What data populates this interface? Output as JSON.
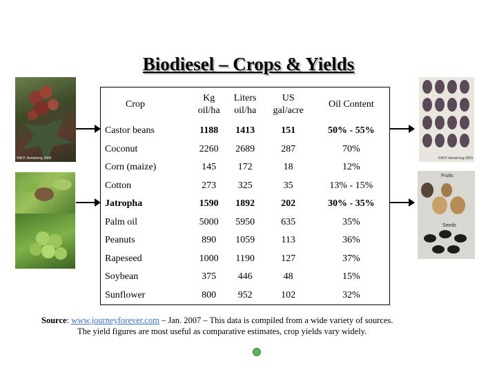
{
  "title": "Biodiesel – Crops & Yields",
  "table": {
    "headers": [
      "Crop",
      "Kg oil/ha",
      "Liters oil/ha",
      "US gal/acre",
      "Oil Content"
    ],
    "header_lines": [
      [
        "Crop"
      ],
      [
        "Kg",
        "oil/ha"
      ],
      [
        "Liters",
        "oil/ha"
      ],
      [
        "US",
        "gal/acre"
      ],
      [
        "Oil Content"
      ]
    ],
    "rows": [
      {
        "crop": "Castor beans",
        "kg": "1188",
        "liters": "1413",
        "gal": "151",
        "oil": "50% - 55%",
        "bold_values": true
      },
      {
        "crop": "Coconut",
        "kg": "2260",
        "liters": "2689",
        "gal": "287",
        "oil": "70%",
        "bold_values": false
      },
      {
        "crop": "Corn (maize)",
        "kg": "145",
        "liters": "172",
        "gal": "18",
        "oil": "12%",
        "bold_values": false
      },
      {
        "crop": "Cotton",
        "kg": "273",
        "liters": "325",
        "gal": "35",
        "oil": "13% - 15%",
        "bold_values": false
      },
      {
        "crop": "Jatropha",
        "kg": "1590",
        "liters": "1892",
        "gal": "202",
        "oil": "30% - 35%",
        "bold_values": true
      },
      {
        "crop": "Palm oil",
        "kg": "5000",
        "liters": "5950",
        "gal": "635",
        "oil": "35%",
        "bold_values": false
      },
      {
        "crop": "Peanuts",
        "kg": "890",
        "liters": "1059",
        "gal": "113",
        "oil": "36%",
        "bold_values": false
      },
      {
        "crop": "Rapeseed",
        "kg": "1000",
        "liters": "1190",
        "gal": "127",
        "oil": "37%",
        "bold_values": false
      },
      {
        "crop": "Soybean",
        "kg": "375",
        "liters": "446",
        "gal": "48",
        "oil": "15%",
        "bold_values": false
      },
      {
        "crop": "Sunflower",
        "kg": "800",
        "liters": "952",
        "gal": "102",
        "oil": "32%",
        "bold_values": false
      }
    ]
  },
  "images": {
    "castor_plant_credit": "©W.P. Armstrong 2009",
    "castor_seeds_credit": "©W.P. Armstrong 2009",
    "jatropha_fruits_label": "Fruits",
    "jatropha_seeds_label": "Seeds"
  },
  "source": {
    "label": "Source",
    "url_text": "www.journeyforever.com",
    "line1_rest": " – Jan. 2007 – This data is compiled from a wide variety of sources.",
    "line2": "The yield figures are most useful as comparative estimates, crop yields vary widely."
  },
  "colors": {
    "link": "#3a6fbf",
    "logo_green": "#5cb85c"
  }
}
